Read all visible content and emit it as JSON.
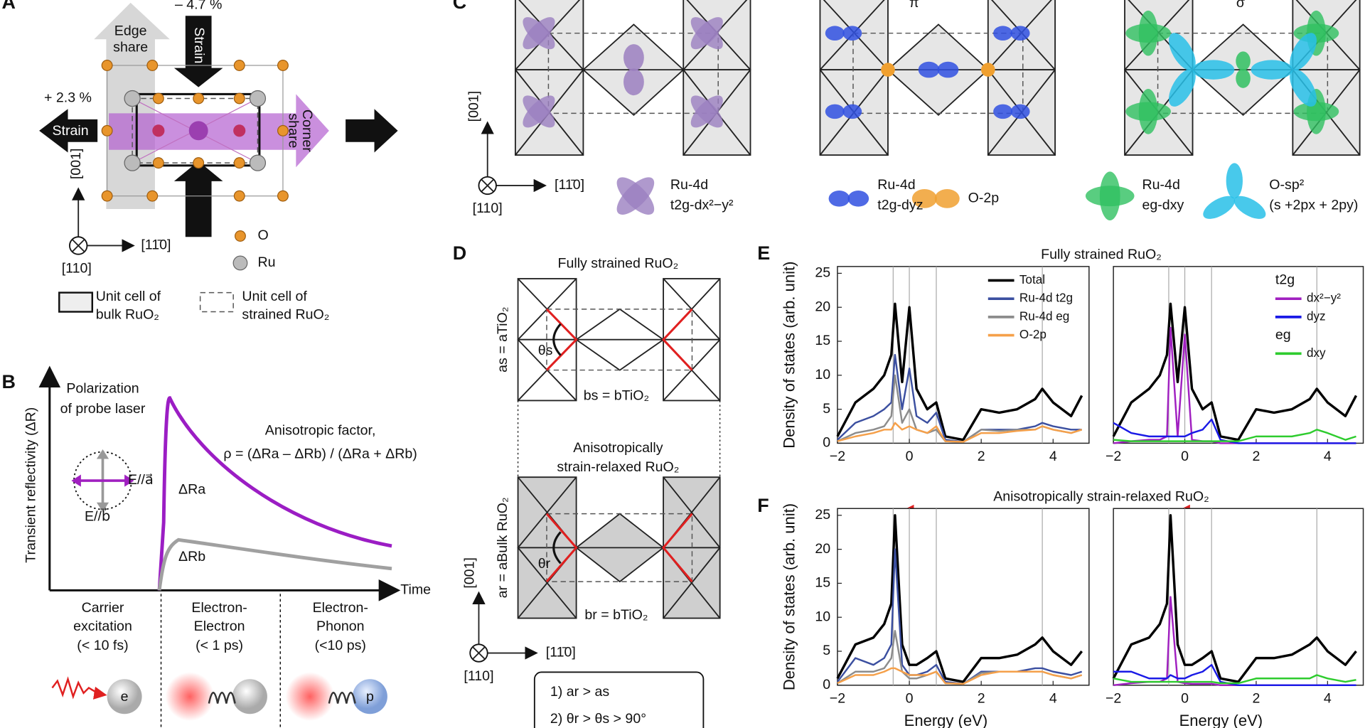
{
  "figure": {
    "panel_labels": [
      "A",
      "B",
      "C",
      "D",
      "E",
      "F"
    ],
    "a": {
      "strain_compress": "– 4.7 %",
      "edge_share": [
        "Edge",
        "share"
      ],
      "strain_top": "Strain",
      "strain_expand": "+ 2.3 %",
      "strain_left": "Strain",
      "corner_share": [
        "Corner",
        "share"
      ],
      "axis_vertical": "[001]",
      "axis_horizontal": "[11̄0]",
      "axis_out": "[110]",
      "legend_o": "O",
      "legend_ru": "Ru",
      "bulk_cell": [
        "Unit cell of",
        "bulk RuO₂"
      ],
      "strained_cell": [
        "Unit cell of",
        "strained RuO₂"
      ]
    },
    "b": {
      "y_label": "Transient reflectivity (ΔR)",
      "x_label": "Time",
      "polarization": [
        "Polarization",
        "of probe laser"
      ],
      "e_parallel_a": "E//a⃗",
      "e_parallel_b": "E//b⃗",
      "delta_ra": "ΔRa",
      "delta_rb": "ΔRb",
      "anisotropic_factor": "Anisotropic factor,",
      "rho": "ρ = (ΔRa – ΔRb) / (ΔRa + ΔRb)",
      "stages": [
        [
          "Carrier",
          "excitation",
          "(< 10 fs)"
        ],
        [
          "Electron-",
          "Electron",
          "(< 1 ps)"
        ],
        [
          "Electron-",
          "Phonon",
          "(<10 ps)"
        ]
      ],
      "electron": "e",
      "phonon": "p"
    },
    "c": {
      "pi": "π",
      "sigma": "σ",
      "axis_vertical": "[001]",
      "axis_horizontal": "[11̄0]",
      "axis_out": "[110]",
      "orbitals": [
        [
          "Ru-4d",
          "t2g-dx²−y²"
        ],
        [
          "Ru-4d",
          "t2g-dyz"
        ],
        [
          "O-2p"
        ],
        [
          "Ru-4d",
          "eg-dxy"
        ],
        [
          "O-sp²",
          "(s +2px + 2py)"
        ]
      ]
    },
    "d": {
      "fully_strained": "Fully strained RuO₂",
      "a_s": "as = aTiO₂",
      "theta_s": "θs",
      "b_s": "bs = bTiO₂",
      "relaxed": [
        "Anisotropically",
        "strain-relaxed RuO₂"
      ],
      "a_r": "ar = aBulk RuO₂",
      "theta_r": "θr",
      "b_r": "br = bTiO₂",
      "axis_vertical": "[001]",
      "axis_horizontal": "[11̄0]",
      "axis_out": "[110]",
      "conditions": [
        "1) ar > as",
        "2) θr > θs > 90°"
      ]
    }
  },
  "chart_data": [
    {
      "type": "line",
      "title": "Fully strained RuO₂",
      "y_label": "Density of states (arb. unit)",
      "xlim": [
        -2,
        5
      ],
      "ylim": [
        0,
        26
      ],
      "xticks": [
        {
          "value": -2,
          "label": "−2"
        },
        0,
        2,
        4
      ],
      "yticks": [
        0,
        5,
        10,
        15,
        20,
        25
      ],
      "vlines": [
        -0.45,
        0,
        0.75,
        3.7
      ],
      "legend": true,
      "x": [
        -2,
        -1.5,
        -1,
        -0.7,
        -0.5,
        -0.4,
        -0.2,
        0,
        0.2,
        0.5,
        0.75,
        1,
        1.5,
        2,
        2.5,
        3,
        3.5,
        3.7,
        4,
        4.5,
        4.8
      ],
      "series": [
        {
          "name": "Total",
          "color": "#000000",
          "values": [
            1,
            6,
            8,
            10,
            13,
            20.5,
            9,
            20,
            8,
            5,
            6,
            1,
            0.5,
            5,
            4.5,
            5,
            6.5,
            8,
            6,
            4,
            7
          ]
        },
        {
          "name": "Ru-4d t2g",
          "color": "#3b4fa0",
          "values": [
            0.5,
            3,
            4,
            5,
            6,
            13,
            5,
            11,
            4,
            3,
            4.5,
            0.5,
            0.2,
            2,
            2,
            2,
            2.5,
            3,
            2.5,
            2,
            2
          ]
        },
        {
          "name": "Ru-4d eg",
          "color": "#8c8c8c",
          "values": [
            0.3,
            1.5,
            2,
            2.5,
            4,
            10,
            3,
            5,
            2,
            1.5,
            2,
            0.3,
            0.2,
            2,
            1.8,
            2,
            2,
            2.5,
            2,
            1.5,
            2
          ]
        },
        {
          "name": "O-2p",
          "color": "#f5a04a",
          "values": [
            0.3,
            1,
            1.5,
            2,
            2,
            3,
            2,
            2.5,
            2,
            1.5,
            2.5,
            0.3,
            0.2,
            1.5,
            1.5,
            1.8,
            2,
            2.5,
            2,
            1.5,
            2
          ]
        }
      ]
    },
    {
      "type": "line",
      "xlim": [
        -2,
        5
      ],
      "ylim": [
        0,
        26
      ],
      "xticks": [
        {
          "value": -2,
          "label": "−2"
        },
        0,
        2,
        4
      ],
      "vlines": [
        -0.45,
        0,
        0.75,
        3.7
      ],
      "legend": true,
      "legend_groups": [
        "t2g",
        "eg"
      ],
      "x": [
        -2,
        -1.5,
        -1,
        -0.7,
        -0.5,
        -0.4,
        -0.2,
        0,
        0.2,
        0.5,
        0.75,
        1,
        1.5,
        2,
        2.5,
        3,
        3.5,
        3.7,
        4,
        4.5,
        4.8
      ],
      "series": [
        {
          "color": "#000000",
          "values": [
            1,
            6,
            8,
            10,
            13,
            20.5,
            9,
            20,
            8,
            5,
            6,
            1,
            0.5,
            5,
            4.5,
            5,
            6.5,
            8,
            6,
            4,
            7
          ]
        },
        {
          "name": "dx²−y²",
          "color": "#a020c0",
          "values": [
            0,
            0.3,
            0.5,
            0.5,
            1,
            17,
            1,
            16,
            0.5,
            0.3,
            0.3,
            0,
            0,
            0,
            0,
            0,
            0,
            0,
            0,
            0,
            0
          ]
        },
        {
          "name": "dyz",
          "color": "#1a1ae6",
          "values": [
            3,
            1.5,
            1,
            1,
            1,
            1,
            1,
            1,
            1.5,
            2,
            3.5,
            0.5,
            0,
            0,
            0,
            0,
            0,
            0,
            0,
            0,
            0
          ]
        },
        {
          "name": "dxy",
          "color": "#2ecc2e",
          "values": [
            0.5,
            0.3,
            0.3,
            0.3,
            0.3,
            0.3,
            0.3,
            0.3,
            0.3,
            0.3,
            0.3,
            0.3,
            0.3,
            1,
            1,
            1,
            1.5,
            2,
            1.5,
            0.5,
            1
          ]
        }
      ]
    },
    {
      "type": "line",
      "title": "Anisotropically strain-relaxed RuO₂",
      "y_label": "Density of states (arb. unit)",
      "x_label": "Energy (eV)",
      "xlim": [
        -2,
        5
      ],
      "ylim": [
        0,
        26
      ],
      "xticks": [
        {
          "value": -2,
          "label": "−2"
        },
        0,
        2,
        4
      ],
      "yticks": [
        0,
        5,
        10,
        15,
        20,
        25
      ],
      "vlines": [
        -0.45,
        0,
        0.75,
        3.7
      ],
      "x": [
        -2,
        -1.5,
        -1,
        -0.7,
        -0.5,
        -0.4,
        -0.2,
        0,
        0.2,
        0.5,
        0.75,
        1,
        1.5,
        2,
        2.5,
        3,
        3.5,
        3.7,
        4,
        4.5,
        4.8
      ],
      "series": [
        {
          "color": "#000000",
          "values": [
            1,
            6,
            7,
            9,
            12,
            25,
            6,
            3,
            3,
            4,
            5,
            1,
            0.5,
            4,
            4,
            4.5,
            6,
            7,
            5,
            3,
            5
          ]
        },
        {
          "color": "#3b4fa0",
          "values": [
            0.5,
            4,
            3,
            4,
            6,
            20,
            3,
            1.5,
            1.5,
            2,
            3,
            0.5,
            0.2,
            2,
            2,
            2,
            2.5,
            2.5,
            2,
            1.5,
            2
          ]
        },
        {
          "color": "#8c8c8c",
          "values": [
            0.3,
            2,
            2,
            2.5,
            4,
            8,
            2,
            1,
            1,
            1.5,
            2,
            0.3,
            0.2,
            1.8,
            2,
            2,
            2,
            2,
            1.5,
            1,
            1.5
          ]
        },
        {
          "color": "#f5a04a",
          "values": [
            0.3,
            1.5,
            1.5,
            2,
            2.5,
            2.5,
            2,
            1.5,
            1.5,
            1.5,
            2,
            0.3,
            0.2,
            1.5,
            2,
            2,
            2,
            2,
            1.5,
            1,
            1.5
          ]
        }
      ]
    },
    {
      "type": "line",
      "x_label": "Energy (eV)",
      "xlim": [
        -2,
        5
      ],
      "ylim": [
        0,
        26
      ],
      "xticks": [
        {
          "value": -2,
          "label": "−2"
        },
        0,
        2,
        4
      ],
      "vlines": [
        -0.45,
        0,
        0.75,
        3.7
      ],
      "x": [
        -2,
        -1.5,
        -1,
        -0.7,
        -0.5,
        -0.4,
        -0.2,
        0,
        0.2,
        0.5,
        0.75,
        1,
        1.5,
        2,
        2.5,
        3,
        3.5,
        3.7,
        4,
        4.5,
        4.8
      ],
      "series": [
        {
          "color": "#000000",
          "values": [
            1,
            6,
            7,
            9,
            12,
            25,
            6,
            3,
            3,
            4,
            5,
            1,
            0.5,
            4,
            4,
            4.5,
            6,
            7,
            5,
            3,
            5
          ]
        },
        {
          "color": "#a020c0",
          "values": [
            0,
            0.3,
            0.5,
            0.5,
            1,
            13,
            0.5,
            0.3,
            0.2,
            0.2,
            0.2,
            0,
            0,
            0,
            0,
            0,
            0,
            0,
            0,
            0,
            0
          ]
        },
        {
          "color": "#1a1ae6",
          "values": [
            2,
            2,
            1,
            1,
            1,
            1.5,
            1,
            1,
            1.5,
            2,
            3,
            0.5,
            0,
            0,
            0,
            0,
            0,
            0,
            0,
            0,
            0
          ]
        },
        {
          "color": "#2ecc2e",
          "values": [
            1,
            0.5,
            0.5,
            0.5,
            0.5,
            0.5,
            0.5,
            0.5,
            0.5,
            0.5,
            0.5,
            0.3,
            0.3,
            1,
            1,
            1,
            1,
            1.5,
            1,
            0.5,
            0.8
          ]
        }
      ]
    }
  ]
}
